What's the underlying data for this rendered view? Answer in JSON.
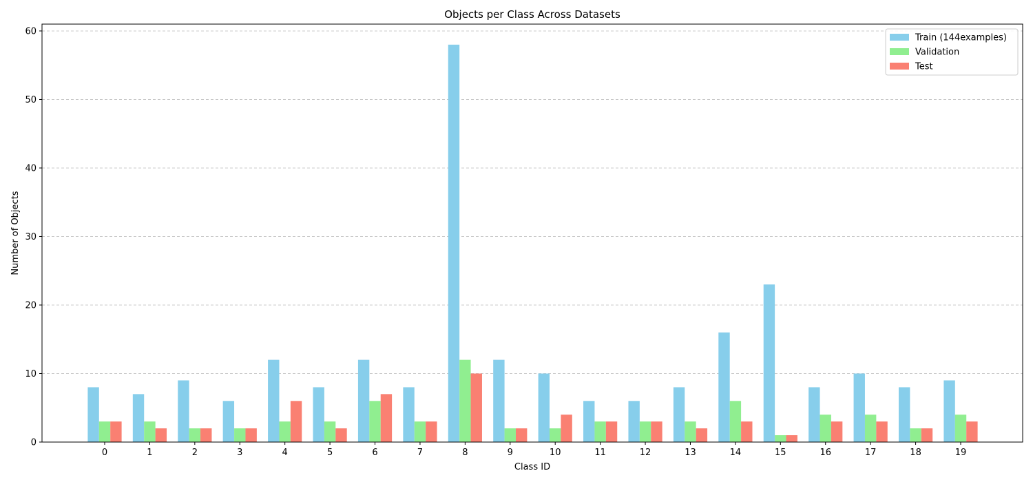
{
  "chart_data": {
    "type": "bar",
    "title": "Objects per Class Across Datasets",
    "xlabel": "Class ID",
    "ylabel": "Number of Objects",
    "categories": [
      "0",
      "1",
      "2",
      "3",
      "4",
      "5",
      "6",
      "7",
      "8",
      "9",
      "10",
      "11",
      "12",
      "13",
      "14",
      "15",
      "16",
      "17",
      "18",
      "19"
    ],
    "series": [
      {
        "name": "Train (144examples)",
        "color": "#87ceeb",
        "values": [
          8,
          7,
          9,
          6,
          12,
          8,
          12,
          8,
          58,
          12,
          10,
          6,
          6,
          8,
          16,
          23,
          8,
          10,
          8,
          9
        ]
      },
      {
        "name": "Validation",
        "color": "#90ee90",
        "values": [
          3,
          3,
          2,
          2,
          3,
          3,
          6,
          3,
          12,
          2,
          2,
          3,
          3,
          3,
          6,
          1,
          4,
          4,
          2,
          4
        ]
      },
      {
        "name": "Test",
        "color": "#fa8072",
        "values": [
          3,
          2,
          2,
          2,
          6,
          2,
          7,
          3,
          10,
          2,
          4,
          3,
          3,
          2,
          3,
          1,
          3,
          3,
          2,
          3
        ]
      }
    ],
    "ylim": [
      0,
      61
    ],
    "yticks": [
      0,
      10,
      20,
      30,
      40,
      50,
      60
    ],
    "grid": "y-dashed",
    "legend": "top-right"
  }
}
